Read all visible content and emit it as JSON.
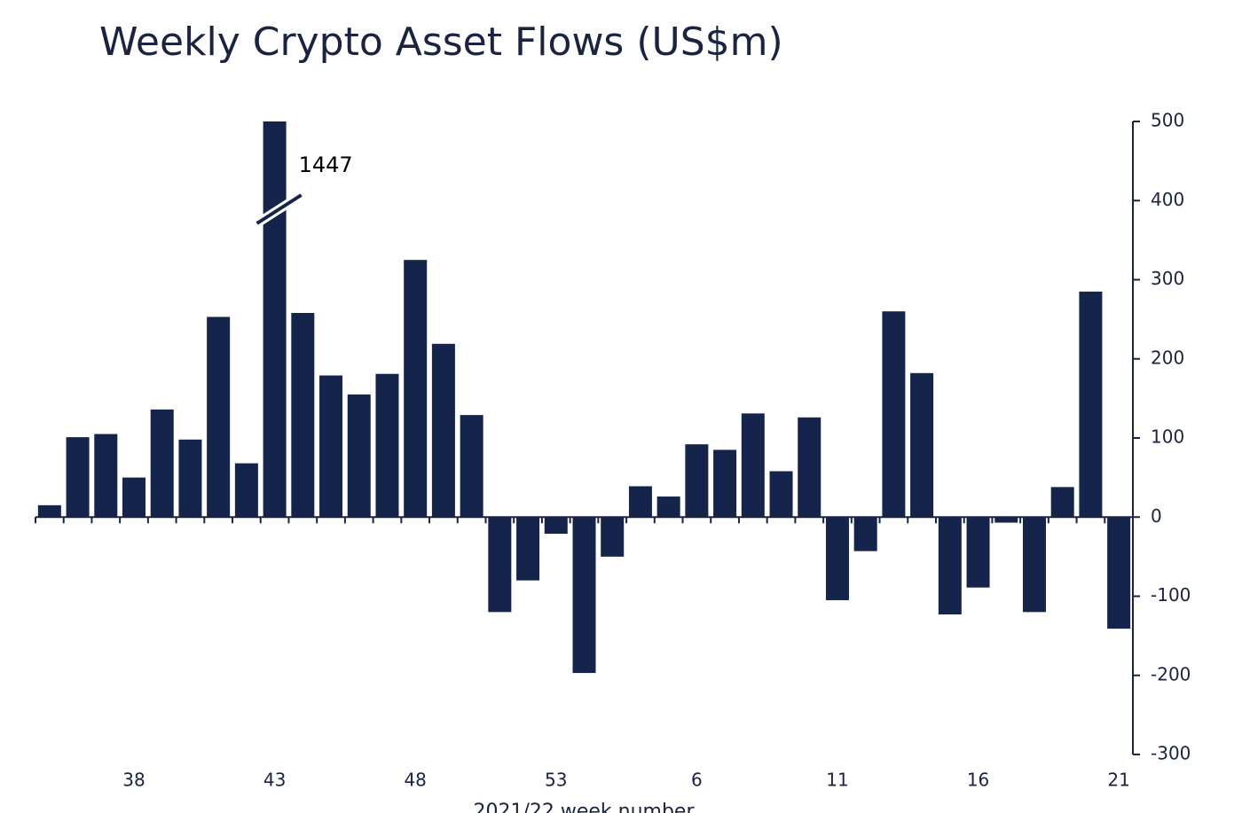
{
  "chart_data": {
    "type": "bar",
    "title": "Weekly Crypto Asset Flows (US$m)",
    "xlabel": "2021/22 week number",
    "categories": [
      null,
      null,
      null,
      "38",
      null,
      null,
      null,
      null,
      "43",
      null,
      null,
      null,
      null,
      "48",
      null,
      null,
      null,
      null,
      "53",
      null,
      null,
      null,
      null,
      "6",
      null,
      null,
      null,
      null,
      "11",
      null,
      null,
      null,
      null,
      "16",
      null,
      null,
      null,
      null,
      "21"
    ],
    "values": [
      15,
      101,
      105,
      50,
      136,
      98,
      253,
      68,
      1447,
      258,
      179,
      155,
      181,
      325,
      219,
      129,
      -120,
      -80,
      -21,
      -197,
      -50,
      39,
      26,
      92,
      85,
      131,
      58,
      126,
      -105,
      -43,
      260,
      182,
      -123,
      -89,
      -7,
      -120,
      38,
      285,
      -141
    ],
    "color": "#14244a",
    "ylim": [
      -300,
      500
    ],
    "yticks": [
      -300,
      -200,
      -100,
      0,
      100,
      200,
      300,
      400,
      500
    ],
    "yaxis_side": "right",
    "grid": false
  }
}
